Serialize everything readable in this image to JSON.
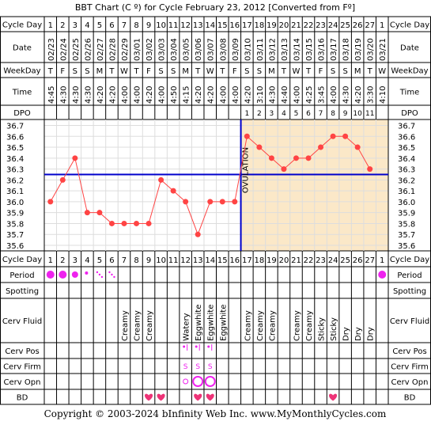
{
  "title": "BBT Chart (C º) for Cycle February 23, 2012  [Converted from Fº]",
  "footer": "Copyright © 2003-2024 bInfinity Web Inc.    www.MyMonthlyCycles.com",
  "row_labels": {
    "cycle_day": "Cycle Day",
    "date": "Date",
    "weekday": "WeekDay",
    "time": "Time",
    "dpo": "DPO",
    "period": "Period",
    "spotting": "Spotting",
    "cerv_fluid": "Cerv Fluid",
    "cerv_pos": "Cerv Pos",
    "cerv_firm": "Cerv Firm",
    "cerv_opn": "Cerv Opn",
    "bd": "BD"
  },
  "cycle_days": [
    "1",
    "2",
    "3",
    "4",
    "5",
    "6",
    "7",
    "8",
    "9",
    "10",
    "11",
    "12",
    "13",
    "14",
    "15",
    "16",
    "17",
    "18",
    "19",
    "20",
    "21",
    "22",
    "23",
    "24",
    "25",
    "26",
    "27",
    "1"
  ],
  "dates": [
    "02/23",
    "02/24",
    "02/25",
    "02/26",
    "02/27",
    "02/28",
    "02/29",
    "03/01",
    "03/02",
    "03/03",
    "03/04",
    "03/05",
    "03/06",
    "03/07",
    "03/08",
    "03/09",
    "03/10",
    "03/11",
    "03/12",
    "03/13",
    "03/14",
    "03/15",
    "03/16",
    "03/17",
    "03/18",
    "03/19",
    "03/20",
    "03/21"
  ],
  "weekdays": [
    "T",
    "F",
    "S",
    "S",
    "M",
    "T",
    "W",
    "T",
    "F",
    "S",
    "S",
    "M",
    "T",
    "W",
    "T",
    "F",
    "S",
    "S",
    "M",
    "T",
    "W",
    "T",
    "F",
    "S",
    "S",
    "M",
    "T",
    "W"
  ],
  "times": [
    "4:45",
    "4:30",
    "4:30",
    "4:30",
    "4:20",
    "4:20",
    "4:00",
    "4:00",
    "4:20",
    "4:00",
    "4:50",
    "4:15",
    "4:20",
    "4:20",
    "4:00",
    "4:00",
    "4:20",
    "3:10",
    "4:30",
    "4:40",
    "4:00",
    "4:25",
    "3:45",
    "4:00",
    "4:30",
    "4:20",
    "3:30",
    "4:10"
  ],
  "dpo": [
    "",
    "",
    "",
    "",
    "",
    "",
    "",
    "",
    "",
    "",
    "",
    "",
    "",
    "",
    "",
    "",
    "1",
    "2",
    "3",
    "4",
    "5",
    "6",
    "7",
    "8",
    "9",
    "10",
    "11",
    ""
  ],
  "cerv_fluid": [
    "",
    "",
    "",
    "",
    "",
    "",
    "Creamy",
    "Creamy",
    "Creamy",
    "",
    "",
    "Watery",
    "Eggwhite",
    "Eggwhite",
    "Eggwhite",
    "",
    "Creamy",
    "Creamy",
    "Creamy",
    "",
    "Creamy",
    "Creamy",
    "Sticky",
    "Sticky",
    "Dry",
    "Dry",
    "Dry",
    ""
  ],
  "period": [
    "heavy",
    "heavy",
    "medium",
    "light",
    "spotting",
    "spotting",
    "",
    "",
    "",
    "",
    "",
    "",
    "",
    "",
    "",
    "",
    "",
    "",
    "",
    "",
    "",
    "",
    "",
    "",
    "",
    "",
    "",
    "heavy"
  ],
  "cerv_pos": [
    "",
    "",
    "",
    "",
    "",
    "",
    "",
    "",
    "",
    "",
    "",
    "high",
    "high",
    "high",
    "",
    "",
    "",
    "",
    "",
    "",
    "",
    "",
    "",
    "",
    "",
    "",
    "",
    ""
  ],
  "cerv_firm": [
    "",
    "",
    "",
    "",
    "",
    "",
    "",
    "",
    "",
    "",
    "",
    "S",
    "S",
    "S",
    "",
    "",
    "",
    "",
    "",
    "",
    "",
    "",
    "",
    "",
    "",
    "",
    "",
    ""
  ],
  "cerv_opn": [
    "",
    "",
    "",
    "",
    "",
    "",
    "",
    "",
    "",
    "",
    "",
    "small",
    "large",
    "large",
    "",
    "",
    "",
    "",
    "",
    "",
    "",
    "",
    "",
    "",
    "",
    "",
    "",
    ""
  ],
  "bd": [
    false,
    false,
    false,
    false,
    false,
    false,
    false,
    false,
    true,
    true,
    false,
    false,
    true,
    true,
    false,
    false,
    false,
    false,
    false,
    false,
    false,
    false,
    false,
    true,
    false,
    false,
    false,
    false
  ],
  "chart_data": {
    "type": "line",
    "title": "BBT Chart (C º) for Cycle February 23, 2012  [Converted from Fº]",
    "xlabel": "Cycle Day",
    "ylabel": "",
    "x": [
      1,
      2,
      3,
      4,
      5,
      6,
      7,
      8,
      9,
      10,
      11,
      12,
      13,
      14,
      15,
      16,
      17,
      18,
      19,
      20,
      21,
      22,
      23,
      24,
      25,
      26,
      27
    ],
    "series": [
      {
        "values": [
          36.0,
          36.2,
          36.4,
          35.9,
          35.9,
          35.8,
          35.8,
          35.8,
          35.8,
          36.2,
          36.1,
          36.0,
          35.7,
          36.0,
          36.0,
          36.0,
          36.6,
          36.5,
          36.4,
          36.3,
          36.4,
          36.4,
          36.5,
          36.6,
          36.6,
          36.5,
          36.3
        ]
      }
    ],
    "y_ticks": [
      "36.7",
      "36.6",
      "36.5",
      "36.4",
      "36.3",
      "36.2",
      "36.1",
      "36.0",
      "35.9",
      "35.8",
      "35.7",
      "35.6"
    ],
    "ylim": [
      35.6,
      36.7
    ],
    "coverline": 36.25,
    "ovulation_day": 16,
    "ovulation_label": "OVULATION",
    "colors": {
      "line": "#ff4444",
      "marker": "#ff4444",
      "coverline": "#0000cc",
      "luteal_fill": "#fbe8c8",
      "grid": "#dddddd",
      "period": "#ee22ee",
      "heart": "#ee3377",
      "border": "#000000"
    }
  }
}
